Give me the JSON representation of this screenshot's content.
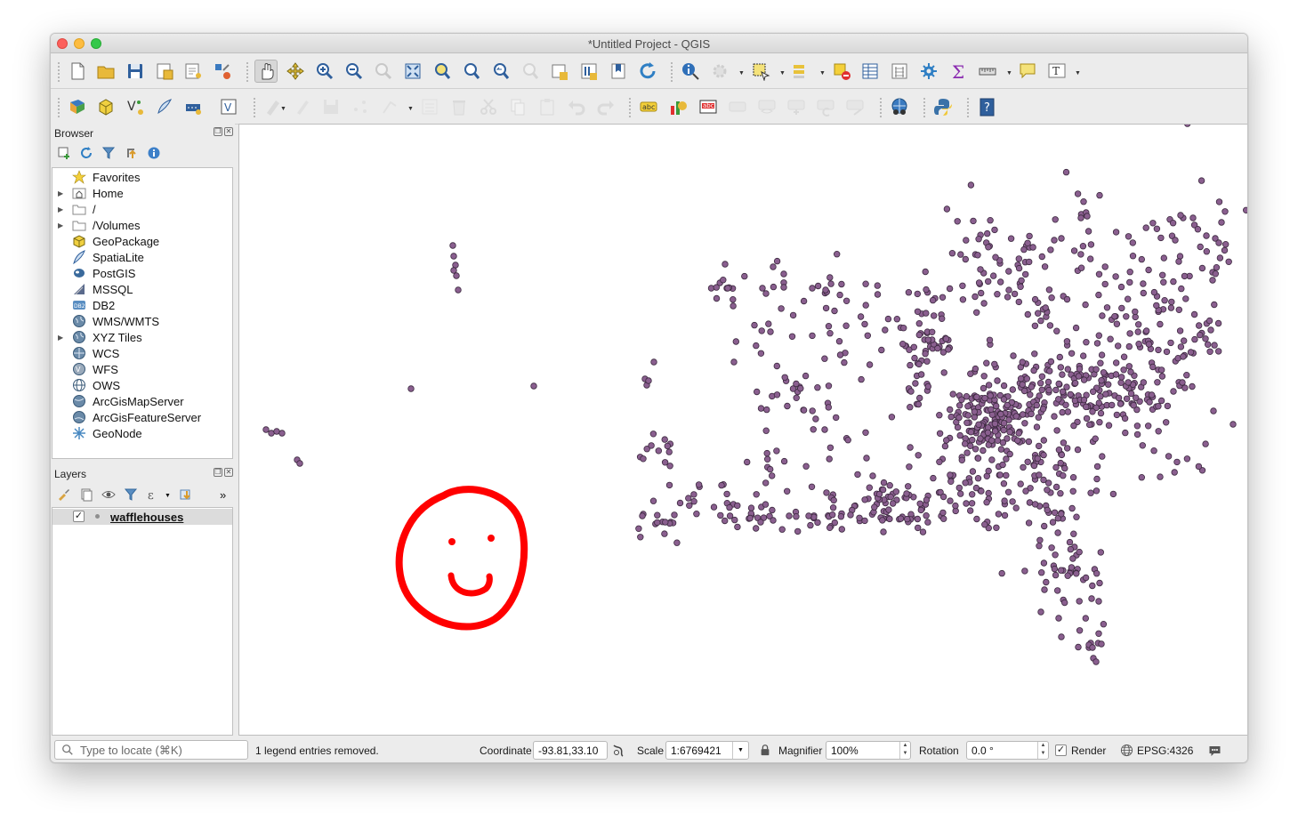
{
  "window": {
    "title": "*Untitled Project - QGIS"
  },
  "toolbar1": {
    "tools": [
      "new-project-icon",
      "open-project-icon",
      "save-project-icon",
      "save-as-icon",
      "print-layout-icon",
      "style-manager-icon",
      "pan-icon",
      "pan-to-selection-icon",
      "zoom-in-icon",
      "zoom-out-icon",
      "zoom-native-icon",
      "zoom-full-icon",
      "zoom-to-selection-icon",
      "zoom-to-layer-icon",
      "zoom-last-icon",
      "zoom-next-icon",
      "new-map-view-icon",
      "new-3d-view-icon",
      "new-bookmark-icon",
      "show-bookmarks-icon",
      "refresh-icon",
      "identify-icon",
      "actions-icon",
      "select-icon",
      "select-value-icon",
      "deselect-icon",
      "attribute-table-icon",
      "field-calculator-icon",
      "processing-toolbox-icon",
      "statistical-summary-icon",
      "measure-icon",
      "map-tips-icon",
      "text-annotation-icon"
    ]
  },
  "toolbar2": {
    "tools": [
      "data-source-manager-icon",
      "new-geopackage-icon",
      "new-shapefile-icon",
      "new-spatialite-icon",
      "new-temp-layer-icon",
      "new-virtual-layer-icon",
      "current-edits-icon",
      "toggle-editing-icon",
      "save-edits-icon",
      "digitize-icon",
      "vertex-tool-icon",
      "modify-attributes-icon",
      "delete-selected-icon",
      "cut-features-icon",
      "copy-features-icon",
      "paste-features-icon",
      "undo-icon",
      "redo-icon",
      "label-toolbar-icon",
      "diagram-icon",
      "highlight-label-icon",
      "pin-labels-icon",
      "show-hide-labels-icon",
      "move-label-icon",
      "rotate-label-icon",
      "change-label-icon",
      "plugin-globe-icon",
      "python-console-icon",
      "help-icon"
    ]
  },
  "browser": {
    "title": "Browser",
    "items": [
      {
        "label": "Favorites",
        "icon": "star-icon",
        "expandable": false
      },
      {
        "label": "Home",
        "icon": "home-folder-icon",
        "expandable": true
      },
      {
        "label": "/",
        "icon": "folder-icon",
        "expandable": true
      },
      {
        "label": "/Volumes",
        "icon": "folder-icon",
        "expandable": true
      },
      {
        "label": "GeoPackage",
        "icon": "geopackage-icon",
        "expandable": false
      },
      {
        "label": "SpatiaLite",
        "icon": "spatialite-icon",
        "expandable": false
      },
      {
        "label": "PostGIS",
        "icon": "postgis-icon",
        "expandable": false
      },
      {
        "label": "MSSQL",
        "icon": "mssql-icon",
        "expandable": false
      },
      {
        "label": "DB2",
        "icon": "db2-icon",
        "expandable": false
      },
      {
        "label": "WMS/WMTS",
        "icon": "globe-icon",
        "expandable": false
      },
      {
        "label": "XYZ Tiles",
        "icon": "globe-icon",
        "expandable": true
      },
      {
        "label": "WCS",
        "icon": "wcs-icon",
        "expandable": false
      },
      {
        "label": "WFS",
        "icon": "wfs-icon",
        "expandable": false
      },
      {
        "label": "OWS",
        "icon": "ows-icon",
        "expandable": false
      },
      {
        "label": "ArcGisMapServer",
        "icon": "arcgis-map-icon",
        "expandable": false
      },
      {
        "label": "ArcGisFeatureServer",
        "icon": "arcgis-feature-icon",
        "expandable": false
      },
      {
        "label": "GeoNode",
        "icon": "geonode-icon",
        "expandable": false
      }
    ]
  },
  "layers": {
    "title": "Layers",
    "items": [
      {
        "label": "wafflehouses",
        "checked": true
      }
    ]
  },
  "status": {
    "locator_placeholder": "Type to locate (⌘K)",
    "message": "1 legend entries removed.",
    "coordinate_label": "Coordinate",
    "coordinate_value": "-93.81,33.10",
    "scale_label": "Scale",
    "scale_value": "1:6769421",
    "magnifier_label": "Magnifier",
    "magnifier_value": "100%",
    "rotation_label": "Rotation",
    "rotation_value": "0.0 °",
    "render_label": "Render",
    "render_checked": true,
    "crs": "EPSG:4326"
  },
  "map": {
    "point_fill": "#8a5f8f",
    "point_stroke": "#3d2a40",
    "annotation_color": "#ff0000"
  }
}
